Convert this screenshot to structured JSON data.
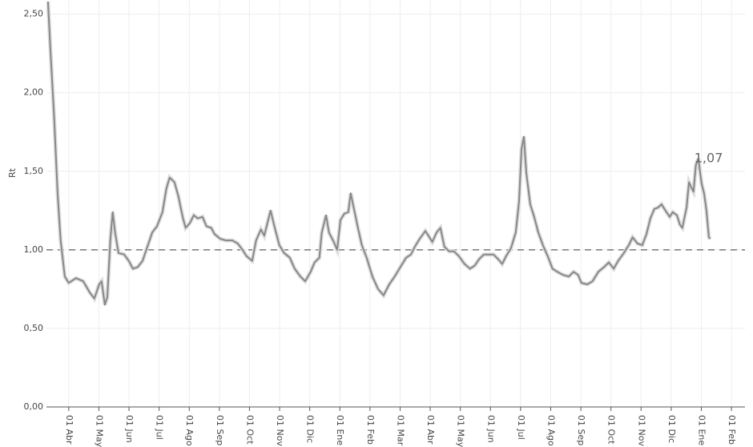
{
  "chart_data": {
    "type": "line",
    "y_label": "Rt",
    "x": [
      -0.69,
      -0.61,
      -0.48,
      -0.37,
      -0.27,
      -0.13,
      0,
      0.24,
      0.48,
      0.69,
      0.85,
      1.01,
      1.09,
      1.2,
      1.28,
      1.38,
      1.46,
      1.54,
      1.65,
      1.84,
      1.99,
      2.13,
      2.29,
      2.45,
      2.61,
      2.77,
      2.93,
      3.11,
      3.24,
      3.35,
      3.51,
      3.64,
      3.78,
      3.88,
      4.02,
      4.15,
      4.28,
      4.44,
      4.57,
      4.73,
      4.84,
      5.03,
      5.21,
      5.43,
      5.61,
      5.77,
      5.9,
      6.09,
      6.22,
      6.38,
      6.49,
      6.62,
      6.7,
      6.84,
      6.99,
      7.15,
      7.34,
      7.5,
      7.69,
      7.85,
      8.03,
      8.16,
      8.32,
      8.4,
      8.54,
      8.64,
      8.8,
      8.91,
      9.02,
      9.15,
      9.28,
      9.36,
      9.47,
      9.6,
      9.73,
      9.89,
      10.08,
      10.27,
      10.45,
      10.64,
      10.82,
      11.01,
      11.2,
      11.36,
      11.49,
      11.65,
      11.84,
      11.94,
      12.07,
      12.21,
      12.34,
      12.47,
      12.63,
      12.79,
      12.95,
      13.14,
      13.32,
      13.48,
      13.62,
      13.78,
      13.94,
      14.1,
      14.26,
      14.39,
      14.52,
      14.68,
      14.84,
      14.95,
      15.03,
      15.11,
      15.19,
      15.32,
      15.45,
      15.59,
      15.74,
      15.9,
      16.06,
      16.22,
      16.41,
      16.6,
      16.76,
      16.91,
      17.02,
      17.21,
      17.39,
      17.58,
      17.77,
      17.93,
      18.09,
      18.24,
      18.43,
      18.59,
      18.72,
      18.88,
      19.04,
      19.18,
      19.31,
      19.44,
      19.57,
      19.68,
      19.81,
      19.95,
      20.05,
      20.19,
      20.29,
      20.37,
      20.51,
      20.59,
      20.66,
      20.74,
      20.82,
      20.9,
      21.01,
      21.09,
      21.17,
      21.25,
      21.3
    ],
    "series": [
      {
        "color": "#888888",
        "values": [
          2.58,
          2.28,
          1.82,
          1.36,
          1.06,
          0.83,
          0.79,
          0.82,
          0.8,
          0.73,
          0.69,
          0.78,
          0.8,
          0.65,
          0.7,
          1.06,
          1.24,
          1.11,
          0.98,
          0.97,
          0.93,
          0.88,
          0.89,
          0.93,
          1.02,
          1.11,
          1.15,
          1.24,
          1.39,
          1.46,
          1.43,
          1.34,
          1.21,
          1.14,
          1.17,
          1.22,
          1.2,
          1.21,
          1.15,
          1.14,
          1.1,
          1.07,
          1.06,
          1.06,
          1.04,
          1.0,
          0.96,
          0.93,
          1.06,
          1.13,
          1.09,
          1.19,
          1.25,
          1.14,
          1.03,
          0.98,
          0.95,
          0.88,
          0.83,
          0.8,
          0.86,
          0.92,
          0.95,
          1.11,
          1.22,
          1.11,
          1.05,
          1.0,
          1.19,
          1.23,
          1.24,
          1.36,
          1.26,
          1.14,
          1.03,
          0.95,
          0.83,
          0.75,
          0.71,
          0.78,
          0.83,
          0.89,
          0.95,
          0.97,
          1.02,
          1.07,
          1.12,
          1.09,
          1.05,
          1.11,
          1.14,
          1.02,
          0.99,
          0.99,
          0.96,
          0.91,
          0.88,
          0.9,
          0.94,
          0.97,
          0.97,
          0.97,
          0.94,
          0.91,
          0.96,
          1.01,
          1.11,
          1.31,
          1.64,
          1.72,
          1.49,
          1.29,
          1.21,
          1.11,
          1.03,
          0.96,
          0.88,
          0.86,
          0.84,
          0.83,
          0.86,
          0.84,
          0.79,
          0.78,
          0.8,
          0.86,
          0.89,
          0.92,
          0.88,
          0.93,
          0.98,
          1.03,
          1.08,
          1.04,
          1.03,
          1.1,
          1.2,
          1.26,
          1.27,
          1.29,
          1.25,
          1.21,
          1.24,
          1.22,
          1.16,
          1.14,
          1.27,
          1.43,
          1.4,
          1.37,
          1.54,
          1.58,
          1.42,
          1.36,
          1.25,
          1.08,
          1.07
        ]
      }
    ],
    "xlim": [
      -0.74,
      22.45
    ],
    "xticks": [
      {
        "value": 0,
        "label": "01 Abr"
      },
      {
        "value": 1,
        "label": "01 May"
      },
      {
        "value": 2,
        "label": "01 Jun"
      },
      {
        "value": 3,
        "label": "01 Jul"
      },
      {
        "value": 4,
        "label": "01 Ago"
      },
      {
        "value": 5,
        "label": "01 Sep"
      },
      {
        "value": 6,
        "label": "01 Oct"
      },
      {
        "value": 7,
        "label": "01 Nov"
      },
      {
        "value": 8,
        "label": "01 Dic"
      },
      {
        "value": 9,
        "label": "01 Ene"
      },
      {
        "value": 10,
        "label": "01 Feb"
      },
      {
        "value": 11,
        "label": "01 Mar"
      },
      {
        "value": 12,
        "label": "01 Abr"
      },
      {
        "value": 13,
        "label": "01 May"
      },
      {
        "value": 14,
        "label": "01 Jun"
      },
      {
        "value": 15,
        "label": "01 Jul"
      },
      {
        "value": 16,
        "label": "01 Ago"
      },
      {
        "value": 17,
        "label": "01 Sep"
      },
      {
        "value": 18,
        "label": "01 Oct"
      },
      {
        "value": 19,
        "label": "01 Nov"
      },
      {
        "value": 20,
        "label": "01 Dic"
      },
      {
        "value": 21,
        "label": "01 Ene"
      },
      {
        "value": 22,
        "label": "01 Feb"
      }
    ],
    "ylim": [
      0,
      2.59
    ],
    "yticks": [
      {
        "value": 0,
        "label": "0,00"
      },
      {
        "value": 0.5,
        "label": "0,50"
      },
      {
        "value": 1,
        "label": "1,00"
      },
      {
        "value": 1.5,
        "label": "1,50"
      },
      {
        "value": 2,
        "label": "2,00"
      },
      {
        "value": 2.5,
        "label": "2,50"
      }
    ],
    "grid": true,
    "reference_line": 1,
    "annotation": {
      "text": "1,07",
      "value": 1.07
    }
  }
}
